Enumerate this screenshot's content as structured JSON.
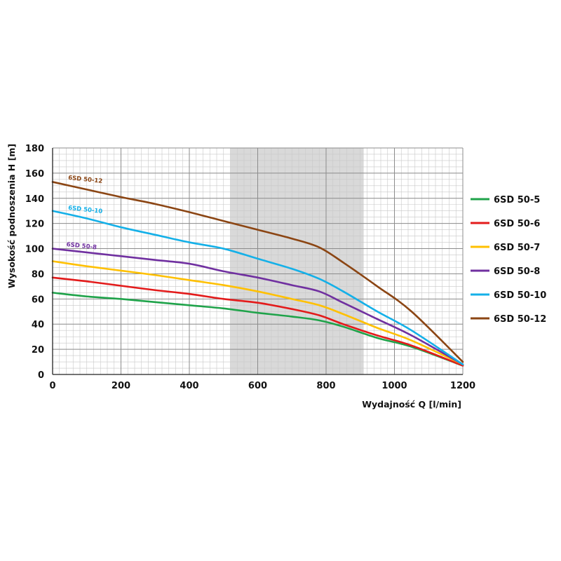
{
  "chart_data": {
    "type": "line",
    "xlabel": "Wydajność Q [l/min]",
    "ylabel": "Wysokość podnoszenia H [m]",
    "xlim": [
      0,
      1200
    ],
    "ylim": [
      0,
      180
    ],
    "x_ticks": [
      0,
      200,
      400,
      600,
      800,
      1000,
      1200
    ],
    "y_ticks": [
      0,
      20,
      40,
      60,
      80,
      100,
      120,
      140,
      160,
      180
    ],
    "x_minor_step": 20,
    "y_minor_step": 5,
    "grid": true,
    "legend_position": "right",
    "shaded_region": {
      "x": [
        520,
        910
      ],
      "color": "#d9d9d9"
    },
    "series": [
      {
        "name": "6SD 50-5",
        "color": "#1fa34a",
        "x": [
          0,
          100,
          200,
          300,
          400,
          500,
          600,
          700,
          780,
          850,
          950,
          1050,
          1200
        ],
        "y": [
          65,
          62,
          60,
          57.5,
          55,
          52.5,
          49,
          46,
          43,
          38,
          29,
          22,
          7
        ]
      },
      {
        "name": "6SD 50-6",
        "color": "#e31b1b",
        "x": [
          0,
          100,
          200,
          300,
          400,
          500,
          600,
          700,
          780,
          850,
          950,
          1050,
          1200
        ],
        "y": [
          77,
          74,
          70.5,
          67,
          64,
          60,
          57,
          52,
          47,
          40,
          31,
          23,
          7
        ]
      },
      {
        "name": "6SD 50-7",
        "color": "#ffc000",
        "x": [
          0,
          100,
          200,
          300,
          400,
          500,
          600,
          700,
          780,
          850,
          950,
          1050,
          1200
        ],
        "y": [
          90,
          86,
          82.5,
          79,
          75,
          71,
          66,
          60,
          55,
          48,
          37,
          27,
          8
        ]
      },
      {
        "name": "6SD 50-8",
        "color": "#7030a0",
        "x": [
          0,
          100,
          200,
          300,
          400,
          500,
          600,
          700,
          780,
          850,
          950,
          1050,
          1200
        ],
        "y": [
          100,
          97,
          94,
          91,
          88,
          82,
          77,
          71,
          66,
          57,
          44,
          31,
          8
        ]
      },
      {
        "name": "6SD 50-10",
        "color": "#14b0e8",
        "x": [
          0,
          100,
          200,
          300,
          400,
          500,
          600,
          700,
          780,
          850,
          950,
          1050,
          1200
        ],
        "y": [
          130,
          124,
          117,
          111,
          105,
          100,
          92,
          84,
          76,
          66,
          50,
          35,
          8
        ]
      },
      {
        "name": "6SD 50-12",
        "color": "#8b4513",
        "x": [
          0,
          100,
          200,
          300,
          400,
          500,
          600,
          700,
          780,
          850,
          950,
          1050,
          1200
        ],
        "y": [
          153,
          147,
          141,
          135.5,
          129,
          122,
          115,
          108,
          101,
          89,
          70,
          50,
          10
        ]
      }
    ],
    "curve_labels": [
      {
        "text": "6SD 50-12",
        "series": 5,
        "x": 45,
        "y": 155
      },
      {
        "text": "6SD 50-10",
        "series": 4,
        "x": 45,
        "y": 131
      },
      {
        "text": "6SD 50-8",
        "series": 3,
        "x": 40,
        "y": 102
      }
    ]
  }
}
